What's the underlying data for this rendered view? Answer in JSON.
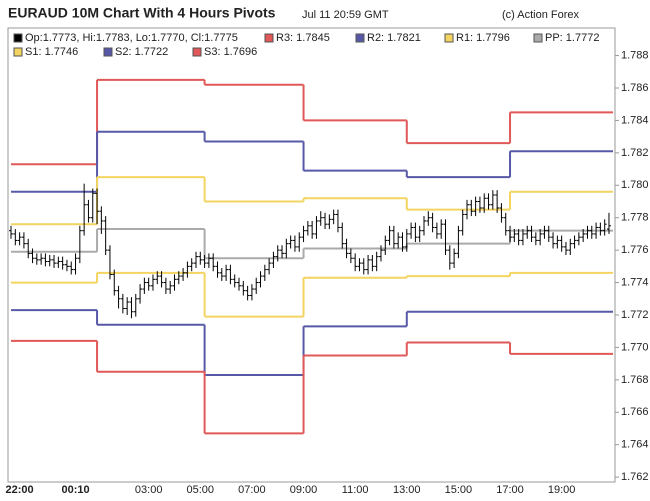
{
  "chart_data": {
    "type": "ohlc",
    "title": "EURAUD 10M Chart With 4 Hours Pivots",
    "date": "Jul 11 20:59 GMT",
    "credit": "(c) Action Forex",
    "ohlc_label": "Op:1.7773, Hi:1.7783, Lo:1.7770, Cl:1.7775",
    "color": "#000000",
    "xlim": [
      -0.7,
      140.4
    ],
    "ylim": [
      1.7617,
      1.7897
    ],
    "yticks": [
      1.762,
      1.764,
      1.766,
      1.768,
      {
        "value": 1.77,
        "label": "1.770"
      },
      1.772,
      1.774,
      1.776,
      1.778,
      {
        "value": 1.78,
        "label": "1.780"
      },
      1.782,
      1.784,
      1.786,
      1.788
    ],
    "xticks": [
      {
        "value": 2,
        "label": "22:00"
      },
      {
        "value": 15,
        "label": "00:10"
      },
      {
        "value": 32,
        "label": "03:00"
      },
      {
        "value": 44,
        "label": "05:00"
      },
      {
        "value": 56,
        "label": "07:00"
      },
      {
        "value": 68,
        "label": "09:00"
      },
      {
        "value": 80,
        "label": "11:00"
      },
      {
        "value": 92,
        "label": "13:00"
      },
      {
        "value": 104,
        "label": "15:00"
      },
      {
        "value": 116,
        "label": "17:00"
      },
      {
        "value": 128,
        "label": "19:00"
      }
    ],
    "open": [
      1.7772,
      1.777,
      1.7766,
      1.7768,
      1.7764,
      1.7758,
      1.7755,
      1.7754,
      1.7755,
      1.7753,
      1.7754,
      1.7752,
      1.7753,
      1.7751,
      1.775,
      1.7748,
      1.7755,
      1.7772,
      1.7788,
      1.778,
      1.7795,
      1.7784,
      1.7778,
      1.776,
      1.7745,
      1.7735,
      1.773,
      1.7724,
      1.7728,
      1.7722,
      1.773,
      1.7736,
      1.774,
      1.7738,
      1.7742,
      1.7744,
      1.774,
      1.7736,
      1.7738,
      1.7742,
      1.7744,
      1.7746,
      1.775,
      1.7752,
      1.7756,
      1.7754,
      1.7752,
      1.7755,
      1.775,
      1.7746,
      1.7744,
      1.7748,
      1.7742,
      1.774,
      1.7738,
      1.7735,
      1.7732,
      1.7736,
      1.774,
      1.7744,
      1.7748,
      1.7752,
      1.7756,
      1.776,
      1.7758,
      1.7764,
      1.7766,
      1.7762,
      1.7768,
      1.7772,
      1.7775,
      1.777,
      1.7778,
      1.778,
      1.7776,
      1.7779,
      1.7782,
      1.7774,
      1.7764,
      1.7758,
      1.7755,
      1.775,
      1.7752,
      1.7748,
      1.7754,
      1.775,
      1.7756,
      1.776,
      1.7766,
      1.7772,
      1.7764,
      1.7768,
      1.7762,
      1.777,
      1.7774,
      1.7768,
      1.7772,
      1.7778,
      1.778,
      1.7774,
      1.777,
      1.7776,
      1.776,
      1.7752,
      1.7758,
      1.7772,
      1.7782,
      1.7788,
      1.7784,
      1.779,
      1.7786,
      1.7792,
      1.7788,
      1.7794,
      1.7786,
      1.778,
      1.7772,
      1.7768,
      1.777,
      1.7766,
      1.777,
      1.7772,
      1.7768,
      1.7766,
      1.777,
      1.7772,
      1.7768,
      1.7764,
      1.7766,
      1.7762,
      1.776,
      1.7764,
      1.7766,
      1.7768,
      1.777,
      1.7772,
      1.777,
      1.7774,
      1.7772,
      1.7773
    ],
    "high": [
      1.7775,
      1.7773,
      1.7771,
      1.7771,
      1.7767,
      1.7761,
      1.7758,
      1.7758,
      1.7758,
      1.7757,
      1.7757,
      1.7756,
      1.7756,
      1.7754,
      1.7753,
      1.7758,
      1.7775,
      1.7801,
      1.7791,
      1.7798,
      1.7798,
      1.7787,
      1.7781,
      1.7763,
      1.7748,
      1.7738,
      1.7733,
      1.7731,
      1.7731,
      1.7733,
      1.7739,
      1.7743,
      1.7743,
      1.7745,
      1.7747,
      1.7747,
      1.7743,
      1.7741,
      1.7745,
      1.7747,
      1.7749,
      1.7753,
      1.7755,
      1.7759,
      1.7759,
      1.7757,
      1.7758,
      1.7758,
      1.7753,
      1.7749,
      1.7751,
      1.7751,
      1.7745,
      1.7743,
      1.7741,
      1.7738,
      1.7739,
      1.7743,
      1.7747,
      1.7751,
      1.7755,
      1.7759,
      1.7763,
      1.7763,
      1.7767,
      1.7769,
      1.7769,
      1.7771,
      1.7775,
      1.7778,
      1.7778,
      1.7781,
      1.7784,
      1.7783,
      1.7782,
      1.7785,
      1.7785,
      1.7777,
      1.7767,
      1.7761,
      1.7758,
      1.7755,
      1.7755,
      1.7757,
      1.7757,
      1.7759,
      1.7763,
      1.7769,
      1.7775,
      1.7775,
      1.7771,
      1.7771,
      1.7773,
      1.7777,
      1.7777,
      1.7775,
      1.7781,
      1.7784,
      1.7783,
      1.7777,
      1.7779,
      1.7779,
      1.7763,
      1.7761,
      1.7775,
      1.7785,
      1.7791,
      1.7791,
      1.7793,
      1.7793,
      1.7795,
      1.7795,
      1.7797,
      1.7797,
      1.7789,
      1.7783,
      1.7775,
      1.7773,
      1.7773,
      1.7773,
      1.7775,
      1.7775,
      1.7771,
      1.7773,
      1.7775,
      1.7775,
      1.7771,
      1.7769,
      1.7769,
      1.7765,
      1.7767,
      1.7769,
      1.7771,
      1.7773,
      1.7775,
      1.7775,
      1.7777,
      1.7777,
      1.7779,
      1.7783
    ],
    "low": [
      1.7767,
      1.7763,
      1.7763,
      1.7761,
      1.7755,
      1.7752,
      1.7751,
      1.7751,
      1.775,
      1.775,
      1.7749,
      1.7749,
      1.7748,
      1.7747,
      1.7745,
      1.7745,
      1.7752,
      1.7769,
      1.7777,
      1.7777,
      1.7776,
      1.777,
      1.7757,
      1.7742,
      1.7732,
      1.7724,
      1.7721,
      1.772,
      1.7718,
      1.7719,
      1.7727,
      1.7733,
      1.7735,
      1.7735,
      1.7739,
      1.7737,
      1.7733,
      1.7733,
      1.7735,
      1.7739,
      1.7741,
      1.7743,
      1.7747,
      1.7749,
      1.7751,
      1.7749,
      1.7749,
      1.7747,
      1.7743,
      1.7741,
      1.7741,
      1.7739,
      1.7737,
      1.7735,
      1.7732,
      1.7729,
      1.7729,
      1.7733,
      1.7737,
      1.7741,
      1.7745,
      1.7749,
      1.7753,
      1.7755,
      1.7755,
      1.7761,
      1.7759,
      1.7759,
      1.7765,
      1.7769,
      1.7767,
      1.7767,
      1.7775,
      1.7773,
      1.7773,
      1.7776,
      1.7771,
      1.7761,
      1.7755,
      1.7752,
      1.7747,
      1.7747,
      1.7745,
      1.7745,
      1.7747,
      1.7747,
      1.7753,
      1.7757,
      1.7763,
      1.7761,
      1.7761,
      1.7759,
      1.7759,
      1.7767,
      1.7765,
      1.7765,
      1.7769,
      1.7775,
      1.7771,
      1.7767,
      1.7767,
      1.7757,
      1.7748,
      1.7749,
      1.7755,
      1.7769,
      1.7779,
      1.7781,
      1.7781,
      1.7783,
      1.7783,
      1.7785,
      1.7785,
      1.7783,
      1.7777,
      1.7769,
      1.7765,
      1.7765,
      1.7763,
      1.7763,
      1.7767,
      1.7765,
      1.7763,
      1.7763,
      1.7767,
      1.7765,
      1.7761,
      1.7761,
      1.7759,
      1.7757,
      1.7757,
      1.7761,
      1.7763,
      1.7765,
      1.7767,
      1.7767,
      1.7767,
      1.7769,
      1.7769,
      1.777
    ],
    "close": [
      1.777,
      1.7766,
      1.7768,
      1.7764,
      1.7758,
      1.7755,
      1.7754,
      1.7755,
      1.7753,
      1.7754,
      1.7752,
      1.7753,
      1.7751,
      1.775,
      1.7748,
      1.7755,
      1.7772,
      1.7788,
      1.778,
      1.7795,
      1.7784,
      1.7778,
      1.776,
      1.7745,
      1.7735,
      1.773,
      1.7724,
      1.7728,
      1.7722,
      1.773,
      1.7736,
      1.774,
      1.7738,
      1.7742,
      1.7744,
      1.774,
      1.7736,
      1.7738,
      1.7742,
      1.7744,
      1.7746,
      1.775,
      1.7752,
      1.7756,
      1.7754,
      1.7752,
      1.7755,
      1.775,
      1.7746,
      1.7744,
      1.7748,
      1.7742,
      1.774,
      1.7738,
      1.7735,
      1.7732,
      1.7736,
      1.774,
      1.7744,
      1.7748,
      1.7752,
      1.7756,
      1.776,
      1.7758,
      1.7764,
      1.7766,
      1.7762,
      1.7768,
      1.7772,
      1.7775,
      1.777,
      1.7778,
      1.778,
      1.7776,
      1.7779,
      1.7782,
      1.7774,
      1.7764,
      1.7758,
      1.7755,
      1.775,
      1.7752,
      1.7748,
      1.7754,
      1.775,
      1.7756,
      1.776,
      1.7766,
      1.7772,
      1.7764,
      1.7768,
      1.7762,
      1.777,
      1.7774,
      1.7768,
      1.7772,
      1.7778,
      1.778,
      1.7774,
      1.777,
      1.7776,
      1.776,
      1.7752,
      1.7758,
      1.7772,
      1.7782,
      1.7788,
      1.7784,
      1.779,
      1.7786,
      1.7792,
      1.7788,
      1.7794,
      1.7786,
      1.778,
      1.7772,
      1.7768,
      1.777,
      1.7766,
      1.777,
      1.7772,
      1.7768,
      1.7766,
      1.777,
      1.7772,
      1.7768,
      1.7764,
      1.7766,
      1.7762,
      1.776,
      1.7764,
      1.7766,
      1.7768,
      1.777,
      1.7772,
      1.777,
      1.7774,
      1.7772,
      1.7776,
      1.7775
    ],
    "pivots": {
      "x": [
        0,
        20,
        45,
        68,
        92,
        116
      ],
      "series": [
        {
          "name": "R3: 1.7845",
          "color": "#e05858",
          "values": [
            1.7813,
            1.7865,
            1.7862,
            1.784,
            1.7826,
            1.7845
          ]
        },
        {
          "name": "R2: 1.7821",
          "color": "#5858a8",
          "values": [
            1.7796,
            1.7833,
            1.7827,
            1.7809,
            1.7805,
            1.7821
          ]
        },
        {
          "name": "R1: 1.7796",
          "color": "#f4d460",
          "values": [
            1.7776,
            1.7805,
            1.779,
            1.7792,
            1.7785,
            1.7796
          ]
        },
        {
          "name": "PP: 1.7772",
          "color": "#aaaaaa",
          "values": [
            1.7759,
            1.7773,
            1.7755,
            1.7761,
            1.7764,
            1.7772
          ]
        },
        {
          "name": "S1: 1.7746",
          "color": "#f4d460",
          "values": [
            1.774,
            1.7746,
            1.7719,
            1.7743,
            1.7744,
            1.7746
          ]
        },
        {
          "name": "S2: 1.7722",
          "color": "#5858a8",
          "values": [
            1.7723,
            1.7714,
            1.7683,
            1.7713,
            1.7722,
            1.7722
          ]
        },
        {
          "name": "S3: 1.7696",
          "color": "#e05858",
          "values": [
            1.7704,
            1.7685,
            1.7647,
            1.7695,
            1.7703,
            1.7696
          ]
        }
      ]
    }
  }
}
